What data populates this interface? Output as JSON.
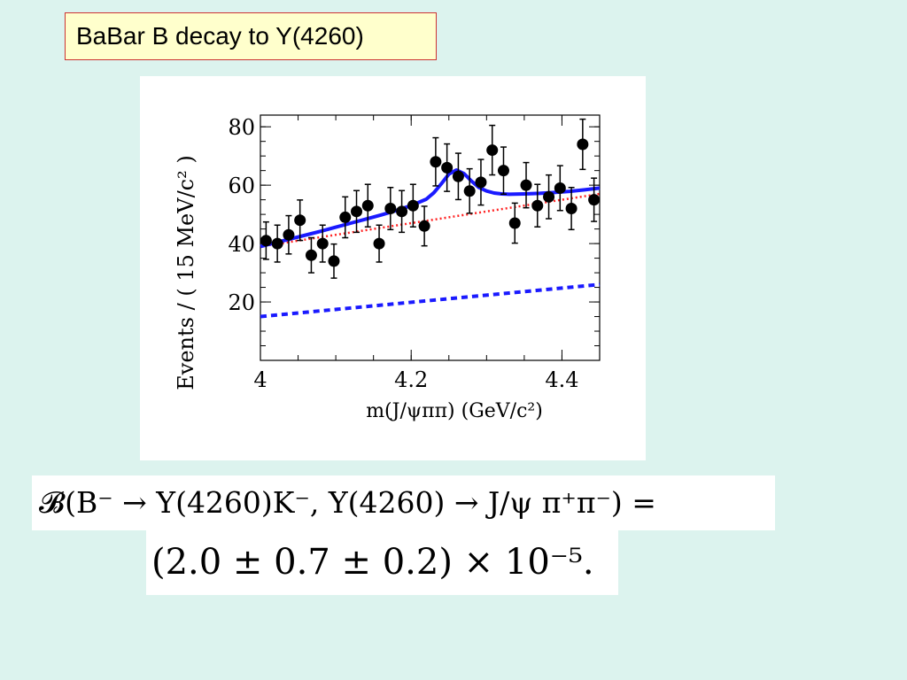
{
  "slide": {
    "title": "BaBar B decay to Y(4260)",
    "formula_line1": "𝓑(B⁻ → Y(4260)K⁻, Y(4260) → J/ψ π⁺π⁻) =",
    "formula_line2": "(2.0 ± 0.7 ± 0.2) × 10⁻⁵."
  },
  "colors": {
    "background": "#dcf3ee",
    "title_box_fill": "#ffffcc",
    "title_box_border": "#cc3333",
    "fit_total": "#1a1aff",
    "background_fit": "#ff2222",
    "lower_dashed": "#1a1aff",
    "points": "#000000"
  },
  "chart_data": {
    "type": "scatter",
    "xlabel": "m(J/ψππ) (GeV/c²)",
    "ylabel": "Events / ( 15 MeV/c² )",
    "xlim": [
      4.0,
      4.45
    ],
    "ylim": [
      0,
      84
    ],
    "x_ticks": [
      4.0,
      4.2,
      4.4
    ],
    "x_tick_labels": [
      "4",
      "4.2",
      "4.4"
    ],
    "y_ticks": [
      20,
      40,
      60,
      80
    ],
    "y_tick_labels": [
      "20",
      "40",
      "60",
      "80"
    ],
    "grid": false,
    "series": [
      {
        "kind": "points",
        "x": [
          4.0075,
          4.0225,
          4.0375,
          4.0525,
          4.0675,
          4.0825,
          4.0975,
          4.1125,
          4.1275,
          4.1425,
          4.1575,
          4.1725,
          4.1875,
          4.2025,
          4.2175,
          4.2325,
          4.2475,
          4.2625,
          4.2775,
          4.2925,
          4.3075,
          4.3225,
          4.3375,
          4.3525,
          4.3675,
          4.3825,
          4.3975,
          4.4125,
          4.4275,
          4.4425
        ],
        "y": [
          41,
          40,
          43,
          48,
          36,
          40,
          34,
          49,
          51,
          53,
          40,
          52,
          51,
          53,
          46,
          68,
          66,
          63,
          58,
          61,
          72,
          65,
          47,
          60,
          53,
          56,
          59,
          52,
          74,
          55
        ]
      },
      {
        "kind": "solid-curve",
        "x": [
          4.0,
          4.02,
          4.04,
          4.06,
          4.08,
          4.1,
          4.12,
          4.14,
          4.16,
          4.18,
          4.2,
          4.22,
          4.23,
          4.24,
          4.25,
          4.26,
          4.27,
          4.28,
          4.29,
          4.3,
          4.31,
          4.32,
          4.33,
          4.35,
          4.37,
          4.39,
          4.41,
          4.43,
          4.45
        ],
        "y": [
          39,
          40.3,
          41.6,
          42.9,
          44.2,
          45.6,
          47.0,
          48.4,
          49.8,
          51.3,
          53.0,
          55.2,
          57.4,
          60.5,
          63.8,
          65.2,
          64.0,
          61.4,
          59.2,
          58.0,
          57.3,
          57.0,
          56.9,
          57.0,
          57.2,
          57.5,
          57.9,
          58.4,
          59
        ]
      },
      {
        "kind": "dotted-line",
        "x": [
          4.0,
          4.45
        ],
        "y": [
          39,
          57
        ]
      },
      {
        "kind": "dashed-line",
        "x": [
          4.0,
          4.45
        ],
        "y": [
          15,
          26
        ]
      }
    ]
  }
}
